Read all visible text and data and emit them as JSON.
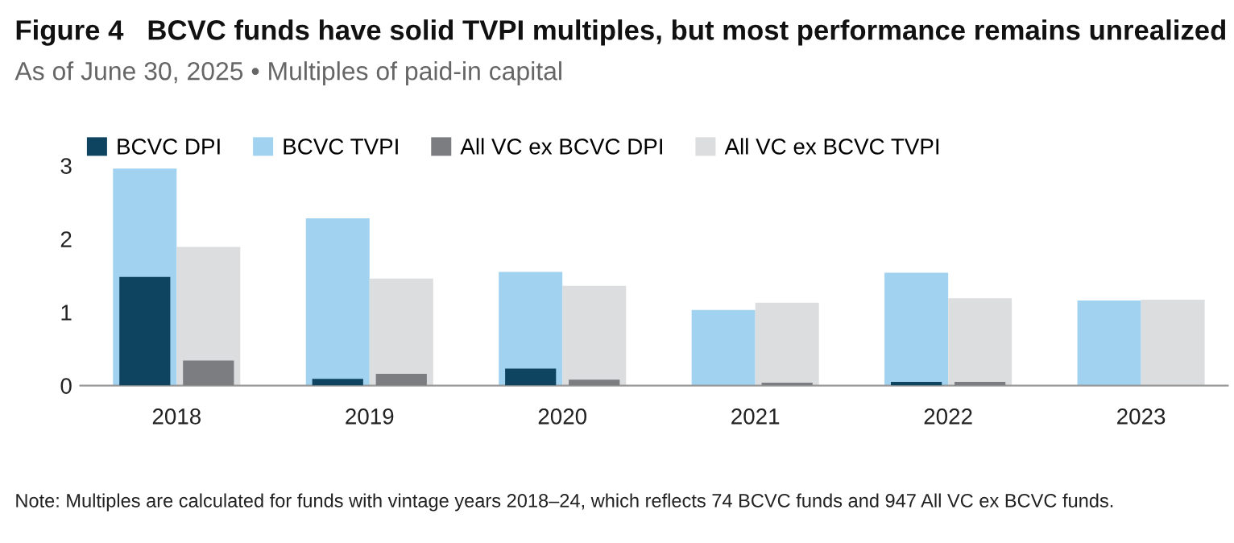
{
  "chart_data": {
    "type": "bar",
    "title": "Figure 4   BCVC funds have solid TVPI multiples, but most performance remains unrealized",
    "subtitle": "As of June 30, 2025 • Multiples of paid-in capital",
    "categories": [
      "2018",
      "2019",
      "2020",
      "2021",
      "2022",
      "2023"
    ],
    "series": [
      {
        "name": "BCVC DPI",
        "color": "#0f4461",
        "values": [
          1.48,
          0.09,
          0.23,
          0,
          0.05,
          0
        ]
      },
      {
        "name": "BCVC TVPI",
        "color": "#a1d2f0",
        "values": [
          2.96,
          2.28,
          1.55,
          1.03,
          1.54,
          1.16
        ]
      },
      {
        "name": "All VC ex BCVC DPI",
        "color": "#7b7d80",
        "values": [
          0.34,
          0.16,
          0.08,
          0.04,
          0.05,
          0
        ]
      },
      {
        "name": "All VC ex BCVC TVPI",
        "color": "#dcdddf",
        "values": [
          1.89,
          1.46,
          1.36,
          1.13,
          1.19,
          1.17
        ]
      }
    ],
    "ylim": [
      0,
      3
    ],
    "yticks": [
      0,
      1,
      2,
      3
    ],
    "grid": false,
    "legend": "top left",
    "annotations": [
      "Note: Multiples are calculated for funds with vintage years 2018–24, which reflects 74 BCVC funds and 947 All VC ex BCVC funds."
    ]
  }
}
